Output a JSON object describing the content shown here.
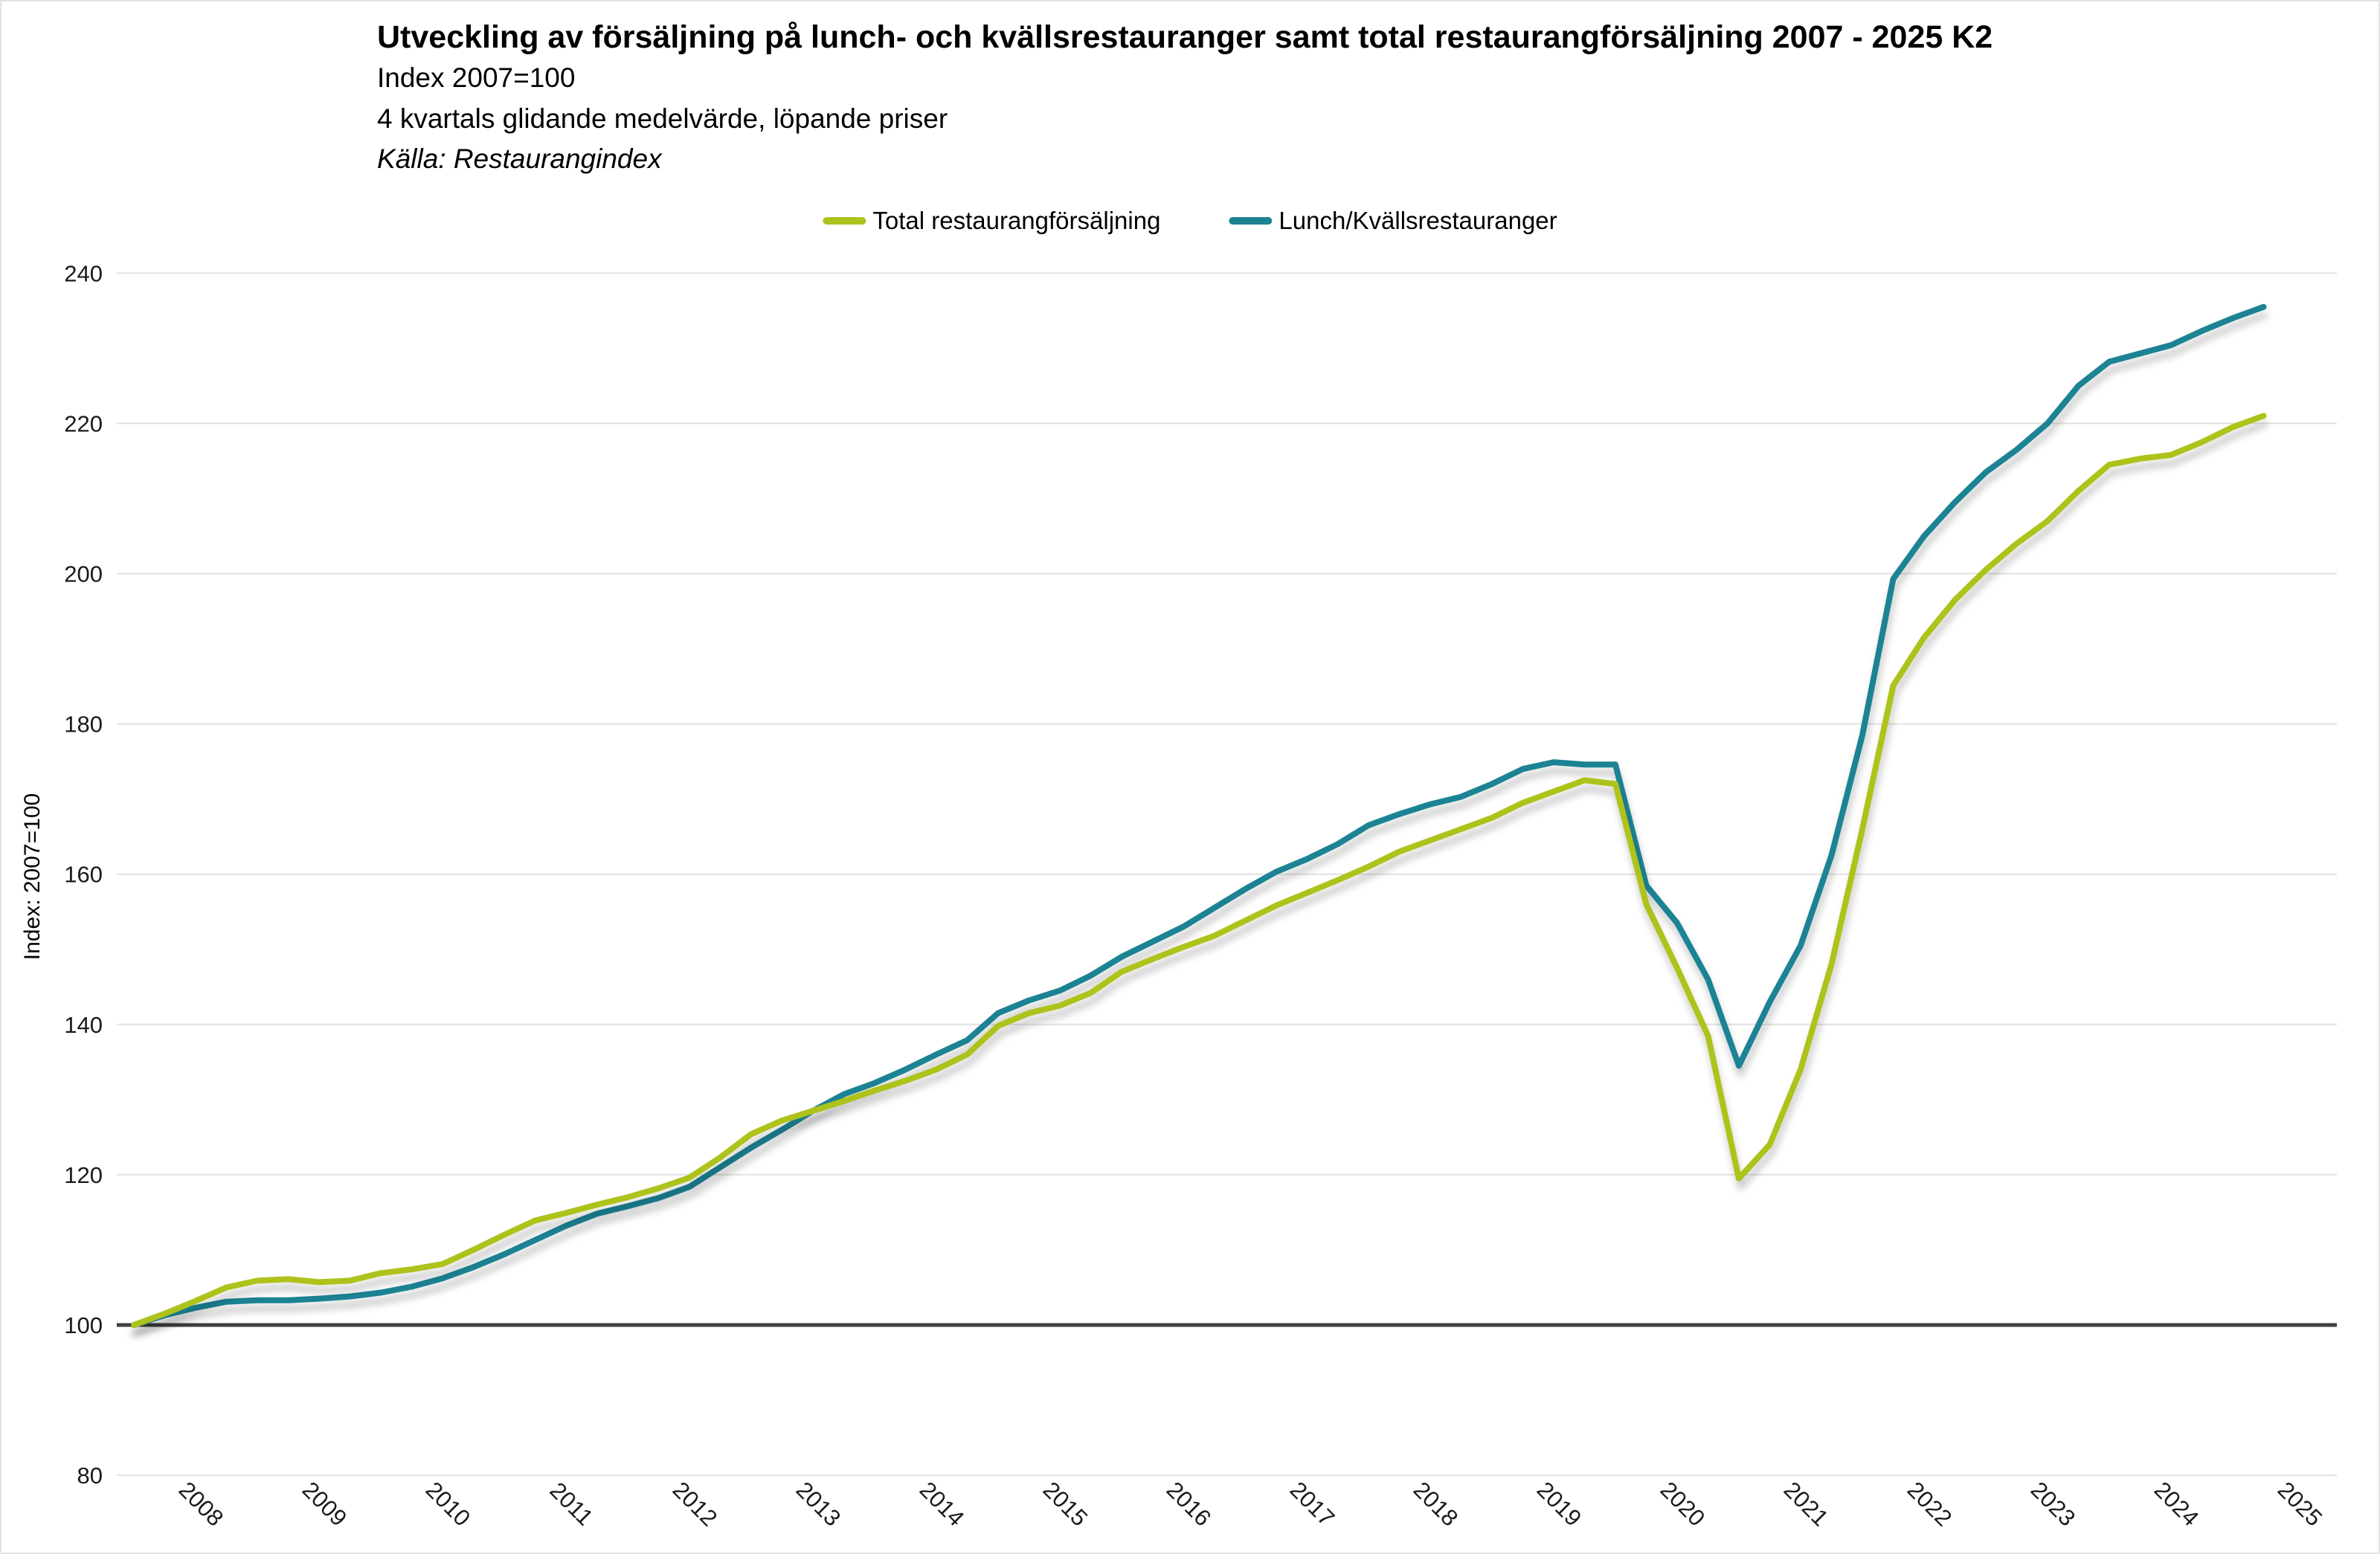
{
  "header": {
    "title": "Utveckling av försäljning på lunch- och kvällsrestauranger samt total restaurangförsäljning 2007 - 2025 K2",
    "subtitle1": "Index 2007=100",
    "subtitle2": "4 kvartals glidande medelvärde, löpande priser",
    "source": "Källa: Restaurangindex"
  },
  "legend": [
    {
      "label": "Total restaurangförsäljning",
      "color": "#aec21e"
    },
    {
      "label": "Lunch/Kvällsrestauranger",
      "color": "#1d8394"
    }
  ],
  "y_axis": {
    "title": "Index: 2007=100"
  },
  "chart_data": {
    "type": "line",
    "title": "Utveckling av försäljning på lunch- och kvällsrestauranger samt total restaurangförsäljning 2007 - 2025 K2",
    "subtitle": "4 kvartals glidande medelvärde, löpande priser",
    "source": "Källa: Restaurangindex",
    "xlabel": "",
    "ylabel": "Index: 2007=100",
    "ylim": [
      80,
      240
    ],
    "yticks": [
      80,
      100,
      120,
      140,
      160,
      180,
      200,
      220,
      240
    ],
    "baseline": 100,
    "grid": "horizontal",
    "legend_position": "top-center",
    "x_tick_labels": [
      "2008",
      "2009",
      "2010",
      "2011",
      "2012",
      "2013",
      "2014",
      "2015",
      "2016",
      "2017",
      "2018",
      "2019",
      "2020",
      "2021",
      "2022",
      "2023",
      "2024",
      "2025"
    ],
    "x_unit": "quarter",
    "x_start_period": "2008 K1",
    "x_end_period": "2025 K2",
    "points_per_year": 4,
    "series": [
      {
        "name": "Total restaurangförsäljning",
        "color": "#aec21e",
        "values": [
          100.0,
          101.5,
          103.2,
          105.0,
          105.9,
          106.1,
          105.7,
          105.9,
          106.9,
          107.4,
          108.1,
          110.0,
          112.0,
          113.9,
          114.9,
          116.0,
          117.0,
          118.2,
          119.6,
          122.3,
          125.4,
          127.2,
          128.5,
          129.8,
          131.2,
          132.5,
          134.0,
          136.0,
          139.8,
          141.5,
          142.5,
          144.2,
          147.0,
          148.7,
          150.3,
          151.8,
          153.8,
          155.8,
          157.5,
          159.2,
          161.0,
          163.0,
          164.5,
          166.0,
          167.5,
          169.5,
          171.0,
          172.5,
          172.0,
          156.0,
          147.5,
          138.5,
          119.5,
          124.0,
          134.0,
          148.0,
          166.0,
          185.1,
          191.5,
          196.5,
          200.5,
          204.0,
          207.0,
          211.0,
          214.5,
          215.3,
          215.8,
          217.5,
          219.5,
          221.0
        ]
      },
      {
        "name": "Lunch/Kvällsrestauranger",
        "color": "#1d8394",
        "values": [
          100.0,
          101.3,
          102.3,
          103.1,
          103.3,
          103.3,
          103.5,
          103.8,
          104.3,
          105.1,
          106.2,
          107.7,
          109.4,
          111.3,
          113.2,
          114.8,
          115.8,
          116.9,
          118.4,
          121.0,
          123.6,
          126.0,
          128.5,
          130.7,
          132.2,
          134.0,
          136.0,
          137.9,
          141.5,
          143.2,
          144.5,
          146.5,
          149.0,
          151.0,
          153.0,
          155.5,
          158.0,
          160.3,
          162.0,
          164.0,
          166.5,
          168.0,
          169.3,
          170.3,
          172.0,
          174.0,
          174.9,
          174.6,
          174.6,
          158.5,
          153.5,
          146.0,
          134.5,
          143.0,
          150.5,
          162.5,
          178.5,
          199.3,
          205.0,
          209.5,
          213.5,
          216.5,
          220.0,
          225.0,
          228.2,
          229.3,
          230.4,
          232.3,
          234.0,
          235.5
        ]
      }
    ]
  },
  "style": {
    "gridline_color": "#e2e2e2",
    "baseline_color": "#3f3f3f",
    "tick_text_color": "#1a1a1a",
    "background": "#ffffff"
  }
}
